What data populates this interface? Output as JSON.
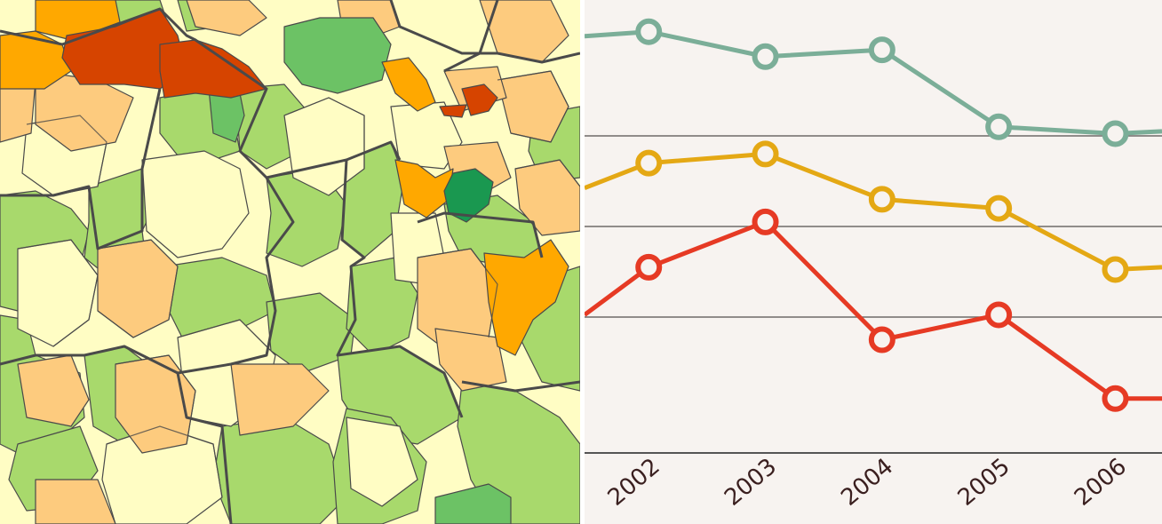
{
  "map": {
    "palette": {
      "very_low": "#FFFDC4",
      "low": "#FFE08C",
      "mid_low": "#FDCB7E",
      "medium": "#FFA800",
      "high": "#D64400",
      "mid_high_green": "#A8D96C",
      "green": "#6CC265",
      "dark_green": "#1A9850"
    },
    "border_color": "#4A4A4A"
  },
  "chart_data": {
    "type": "line",
    "title": "",
    "xlabel": "",
    "ylabel": "",
    "x": [
      "2002",
      "2003",
      "2004",
      "2005",
      "2006"
    ],
    "xlim": [
      2001.45,
      2006.4
    ],
    "ylim": [
      0,
      100
    ],
    "grid": "horizontal",
    "gridlines_y": [
      0,
      30,
      50,
      70
    ],
    "series": [
      {
        "color": "#7BAE98",
        "points": [
          [
            2001.45,
            92
          ],
          [
            2002,
            93
          ],
          [
            2003,
            87.5
          ],
          [
            2004,
            89
          ],
          [
            2005,
            72
          ],
          [
            2006,
            70.5
          ],
          [
            2006.4,
            71
          ]
        ]
      },
      {
        "color": "#E4A814",
        "points": [
          [
            2001.45,
            58.5
          ],
          [
            2002,
            64
          ],
          [
            2003,
            66
          ],
          [
            2004,
            56
          ],
          [
            2005,
            54
          ],
          [
            2006,
            40.5
          ],
          [
            2006.4,
            41
          ]
        ]
      },
      {
        "color": "#E63A24",
        "points": [
          [
            2001.45,
            30.5
          ],
          [
            2002,
            41
          ],
          [
            2003,
            51
          ],
          [
            2004,
            25
          ],
          [
            2005,
            30.5
          ],
          [
            2006,
            12
          ],
          [
            2006.4,
            12
          ]
        ]
      }
    ]
  }
}
